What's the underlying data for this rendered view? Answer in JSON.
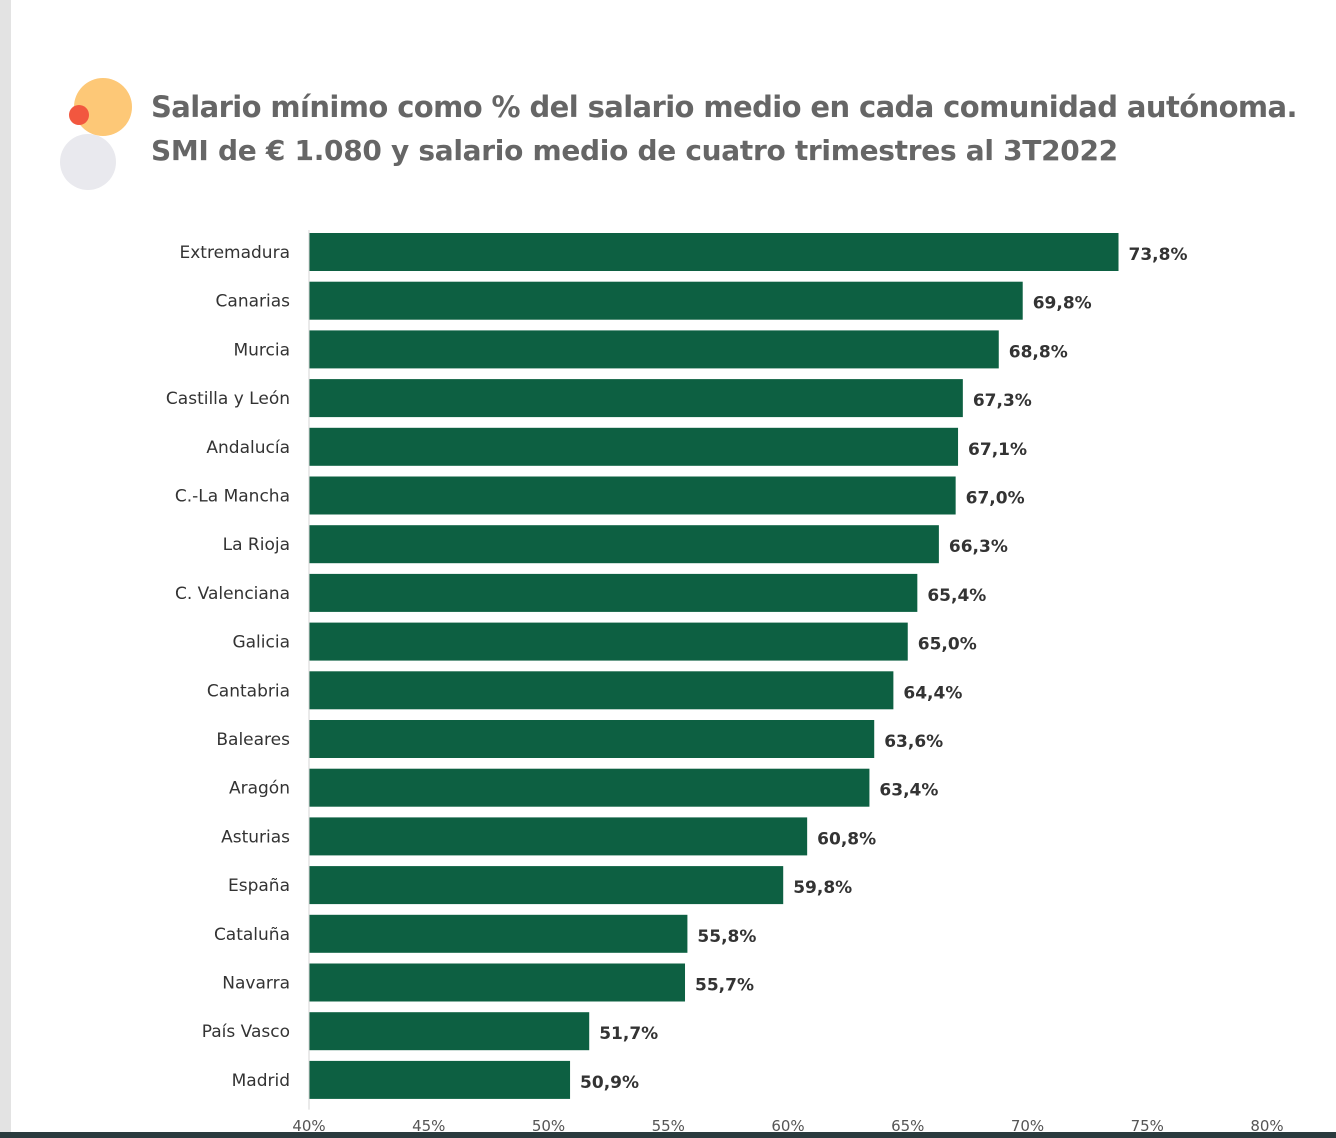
{
  "header": {
    "title": "Salario mínimo como % del salario medio en cada comunidad autónoma.",
    "subtitle": "SMI de € 1.080 y salario medio de cuatro trimestres al 3T2022"
  },
  "colors": {
    "bar": "#0d6042",
    "logo_orange": "#fdc877",
    "logo_red": "#f2573f",
    "logo_grey": "#e9e9ee"
  },
  "chart_data": {
    "type": "bar",
    "orientation": "horizontal",
    "title": "Salario mínimo como % del salario medio en cada comunidad autónoma.",
    "subtitle": "SMI de € 1.080 y salario medio de cuatro trimestres al 3T2022",
    "categories": [
      "Extremadura",
      "Canarias",
      "Murcia",
      "Castilla y León",
      "Andalucía",
      "C.-La Mancha",
      "La Rioja",
      "C. Valenciana",
      "Galicia",
      "Cantabria",
      "Baleares",
      "Aragón",
      "Asturias",
      "España",
      "Cataluña",
      "Navarra",
      "País Vasco",
      "Madrid"
    ],
    "values": [
      73.8,
      69.8,
      68.8,
      67.3,
      67.1,
      67.0,
      66.3,
      65.4,
      65.0,
      64.4,
      63.6,
      63.4,
      60.8,
      59.8,
      55.8,
      55.7,
      51.7,
      50.9
    ],
    "value_labels": [
      "73,8%",
      "69,8%",
      "68,8%",
      "67,3%",
      "67,1%",
      "67,0%",
      "66,3%",
      "65,4%",
      "65,0%",
      "64,4%",
      "63,6%",
      "63,4%",
      "60,8%",
      "59,8%",
      "55,8%",
      "55,7%",
      "51,7%",
      "50,9%"
    ],
    "xlim": [
      40,
      80
    ],
    "xticks": [
      40,
      45,
      50,
      55,
      60,
      65,
      70,
      75,
      80
    ],
    "xtick_labels": [
      "40%",
      "45%",
      "50%",
      "55%",
      "60%",
      "65%",
      "70%",
      "75%",
      "80%"
    ],
    "grid": false,
    "legend": false
  }
}
